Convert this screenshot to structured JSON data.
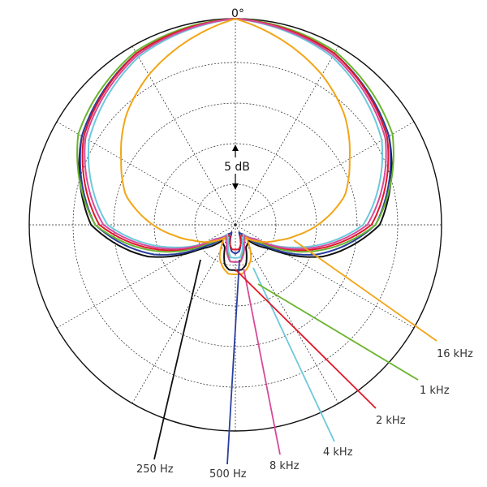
{
  "chart_data": {
    "type": "polar",
    "angle_label": "0°",
    "scale_label": "5 dB",
    "grid": true,
    "series": [
      {
        "name": "250 Hz",
        "color": "#111111",
        "r": [
          [
            0,
            100
          ],
          [
            30,
            96
          ],
          [
            60,
            86
          ],
          [
            90,
            70
          ],
          [
            110,
            45
          ],
          [
            125,
            20
          ],
          [
            140,
            10
          ],
          [
            155,
            12
          ],
          [
            165,
            20
          ],
          [
            172,
            22
          ],
          [
            180,
            22
          ]
        ]
      },
      {
        "name": "500 Hz",
        "color": "#2a3f9f",
        "r": [
          [
            0,
            100
          ],
          [
            30,
            96
          ],
          [
            60,
            86
          ],
          [
            90,
            68
          ],
          [
            110,
            42
          ],
          [
            125,
            18
          ],
          [
            140,
            6
          ],
          [
            155,
            4
          ],
          [
            165,
            10
          ],
          [
            172,
            13
          ],
          [
            180,
            14
          ]
        ]
      },
      {
        "name": "1 kHz",
        "color": "#6ab42e",
        "r": [
          [
            0,
            100
          ],
          [
            30,
            97
          ],
          [
            60,
            88
          ],
          [
            90,
            68
          ],
          [
            110,
            38
          ],
          [
            125,
            15
          ],
          [
            140,
            7
          ],
          [
            155,
            8
          ],
          [
            165,
            14
          ],
          [
            172,
            18
          ],
          [
            180,
            18
          ]
        ]
      },
      {
        "name": "2 kHz",
        "color": "#e0192a",
        "r": [
          [
            0,
            100
          ],
          [
            30,
            96
          ],
          [
            60,
            85
          ],
          [
            90,
            66
          ],
          [
            110,
            36
          ],
          [
            125,
            12
          ],
          [
            140,
            6
          ],
          [
            155,
            6
          ],
          [
            165,
            10
          ],
          [
            172,
            12
          ],
          [
            180,
            12
          ]
        ]
      },
      {
        "name": "4 kHz",
        "color": "#6ec8dc",
        "r": [
          [
            0,
            100
          ],
          [
            30,
            94
          ],
          [
            60,
            82
          ],
          [
            90,
            62
          ],
          [
            110,
            32
          ],
          [
            125,
            12
          ],
          [
            140,
            6
          ],
          [
            155,
            8
          ],
          [
            165,
            13
          ],
          [
            172,
            16
          ],
          [
            180,
            16
          ]
        ]
      },
      {
        "name": "8 kHz",
        "color": "#d64a9a",
        "r": [
          [
            0,
            100
          ],
          [
            30,
            95
          ],
          [
            60,
            84
          ],
          [
            90,
            64
          ],
          [
            110,
            34
          ],
          [
            125,
            12
          ],
          [
            140,
            7
          ],
          [
            155,
            10
          ],
          [
            165,
            15
          ],
          [
            172,
            18
          ],
          [
            180,
            18
          ]
        ]
      },
      {
        "name": "16 kHz",
        "color": "#f2a516",
        "r": [
          [
            0,
            100
          ],
          [
            15,
            92
          ],
          [
            30,
            84
          ],
          [
            45,
            75
          ],
          [
            60,
            64
          ],
          [
            75,
            55
          ],
          [
            90,
            40
          ],
          [
            100,
            30
          ],
          [
            110,
            22
          ],
          [
            125,
            14
          ],
          [
            140,
            8
          ],
          [
            155,
            18
          ],
          [
            165,
            22
          ],
          [
            172,
            24
          ],
          [
            180,
            24
          ]
        ]
      }
    ],
    "labels": [
      "250 Hz",
      "500 Hz",
      "8 kHz",
      "4 kHz",
      "2 kHz",
      "1 kHz",
      "16 kHz"
    ]
  }
}
